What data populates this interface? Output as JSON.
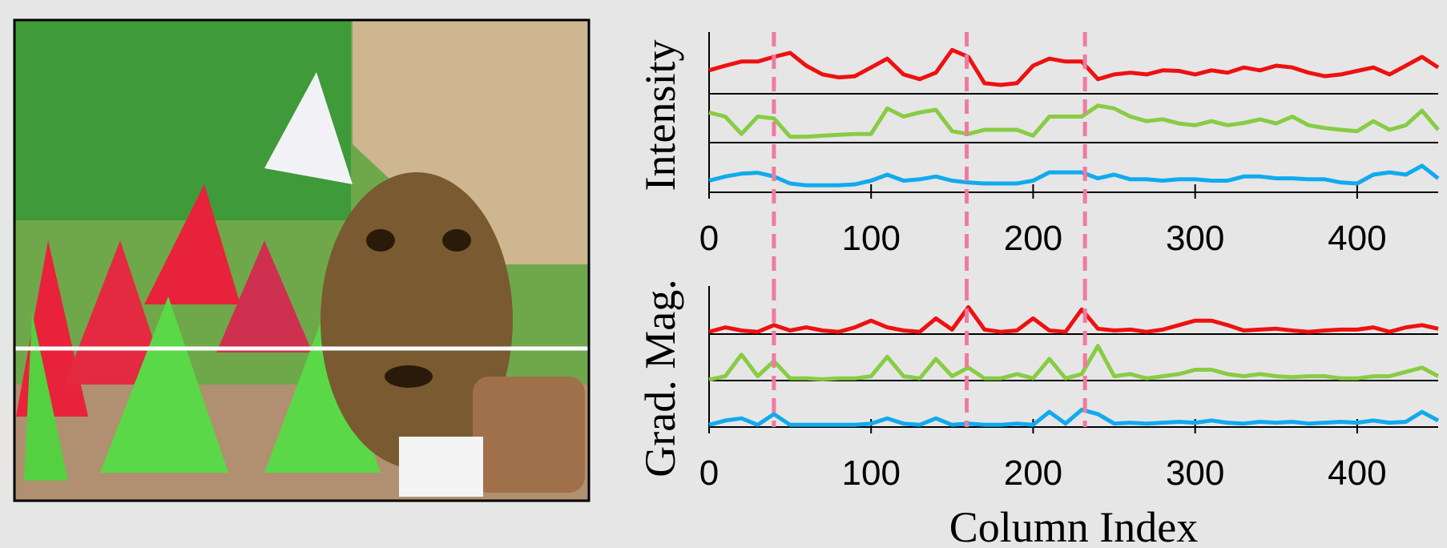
{
  "chart_data": [
    {
      "type": "line",
      "ylabel": "Intensity",
      "x": [
        0,
        10,
        20,
        30,
        40,
        50,
        60,
        70,
        80,
        90,
        100,
        110,
        120,
        130,
        140,
        150,
        160,
        170,
        180,
        190,
        200,
        210,
        220,
        230,
        240,
        250,
        260,
        270,
        280,
        290,
        300,
        310,
        320,
        330,
        340,
        350,
        360,
        370,
        380,
        390,
        400,
        410,
        420,
        430,
        440,
        450
      ],
      "xlim": [
        0,
        450
      ],
      "xticks": [
        0,
        100,
        200,
        300,
        400
      ],
      "ylim": [
        0,
        1
      ],
      "markers": [
        40,
        159,
        232
      ],
      "marker_color": "#f07aa0",
      "series": [
        {
          "color": "#ee1111",
          "values": [
            0.4,
            0.48,
            0.55,
            0.55,
            0.63,
            0.7,
            0.48,
            0.33,
            0.28,
            0.3,
            0.45,
            0.6,
            0.33,
            0.25,
            0.36,
            0.75,
            0.63,
            0.18,
            0.15,
            0.18,
            0.48,
            0.6,
            0.55,
            0.55,
            0.25,
            0.33,
            0.36,
            0.33,
            0.4,
            0.39,
            0.33,
            0.4,
            0.36,
            0.45,
            0.4,
            0.48,
            0.45,
            0.36,
            0.3,
            0.33,
            0.39,
            0.45,
            0.33,
            0.48,
            0.63,
            0.45
          ]
        },
        {
          "color": "#88cc44",
          "values": [
            0.66,
            0.57,
            0.19,
            0.57,
            0.53,
            0.13,
            0.13,
            0.15,
            0.17,
            0.19,
            0.19,
            0.75,
            0.57,
            0.66,
            0.72,
            0.25,
            0.19,
            0.28,
            0.28,
            0.28,
            0.15,
            0.57,
            0.57,
            0.57,
            0.81,
            0.75,
            0.57,
            0.47,
            0.51,
            0.42,
            0.38,
            0.47,
            0.38,
            0.43,
            0.51,
            0.42,
            0.57,
            0.38,
            0.32,
            0.28,
            0.25,
            0.47,
            0.28,
            0.38,
            0.7,
            0.28
          ]
        },
        {
          "color": "#11aaee",
          "values": [
            0.25,
            0.34,
            0.4,
            0.42,
            0.34,
            0.19,
            0.15,
            0.15,
            0.15,
            0.17,
            0.25,
            0.38,
            0.25,
            0.28,
            0.34,
            0.25,
            0.21,
            0.19,
            0.19,
            0.19,
            0.25,
            0.43,
            0.43,
            0.43,
            0.3,
            0.38,
            0.28,
            0.28,
            0.25,
            0.28,
            0.28,
            0.25,
            0.25,
            0.34,
            0.34,
            0.3,
            0.3,
            0.28,
            0.28,
            0.21,
            0.19,
            0.38,
            0.43,
            0.38,
            0.57,
            0.3
          ]
        }
      ]
    },
    {
      "type": "line",
      "ylabel": "Grad. Mag.",
      "xlabel": "Column Index",
      "x": [
        0,
        10,
        20,
        30,
        40,
        50,
        60,
        70,
        80,
        90,
        100,
        110,
        120,
        130,
        140,
        150,
        160,
        170,
        180,
        190,
        200,
        210,
        220,
        230,
        240,
        250,
        260,
        270,
        280,
        290,
        300,
        310,
        320,
        330,
        340,
        350,
        360,
        370,
        380,
        390,
        400,
        410,
        420,
        430,
        440,
        450
      ],
      "xlim": [
        0,
        450
      ],
      "xticks": [
        0,
        100,
        200,
        300,
        400
      ],
      "ylim": [
        0,
        1
      ],
      "markers": [
        40,
        159,
        232
      ],
      "marker_color": "#f07aa0",
      "series": [
        {
          "color": "#ee1111",
          "values": [
            0.05,
            0.15,
            0.08,
            0.05,
            0.2,
            0.08,
            0.15,
            0.08,
            0.05,
            0.15,
            0.3,
            0.15,
            0.08,
            0.05,
            0.35,
            0.1,
            0.6,
            0.1,
            0.05,
            0.08,
            0.35,
            0.08,
            0.05,
            0.55,
            0.12,
            0.08,
            0.1,
            0.05,
            0.1,
            0.2,
            0.3,
            0.3,
            0.2,
            0.08,
            0.1,
            0.12,
            0.08,
            0.05,
            0.08,
            0.1,
            0.1,
            0.15,
            0.05,
            0.15,
            0.2,
            0.12
          ]
        },
        {
          "color": "#88cc44",
          "values": [
            0.02,
            0.1,
            0.6,
            0.1,
            0.45,
            0.05,
            0.05,
            0.03,
            0.05,
            0.05,
            0.1,
            0.55,
            0.1,
            0.05,
            0.5,
            0.1,
            0.3,
            0.05,
            0.05,
            0.15,
            0.05,
            0.5,
            0.05,
            0.15,
            0.8,
            0.1,
            0.15,
            0.05,
            0.1,
            0.15,
            0.25,
            0.25,
            0.15,
            0.1,
            0.15,
            0.1,
            0.08,
            0.1,
            0.1,
            0.05,
            0.05,
            0.1,
            0.1,
            0.2,
            0.3,
            0.1
          ]
        },
        {
          "color": "#11aaee",
          "values": [
            0.05,
            0.15,
            0.2,
            0.05,
            0.3,
            0.05,
            0.05,
            0.05,
            0.05,
            0.05,
            0.08,
            0.2,
            0.08,
            0.05,
            0.2,
            0.05,
            0.08,
            0.05,
            0.05,
            0.08,
            0.05,
            0.35,
            0.08,
            0.4,
            0.3,
            0.08,
            0.1,
            0.08,
            0.1,
            0.12,
            0.1,
            0.15,
            0.1,
            0.08,
            0.12,
            0.1,
            0.12,
            0.08,
            0.1,
            0.12,
            0.1,
            0.15,
            0.1,
            0.12,
            0.35,
            0.15
          ]
        }
      ]
    }
  ]
}
